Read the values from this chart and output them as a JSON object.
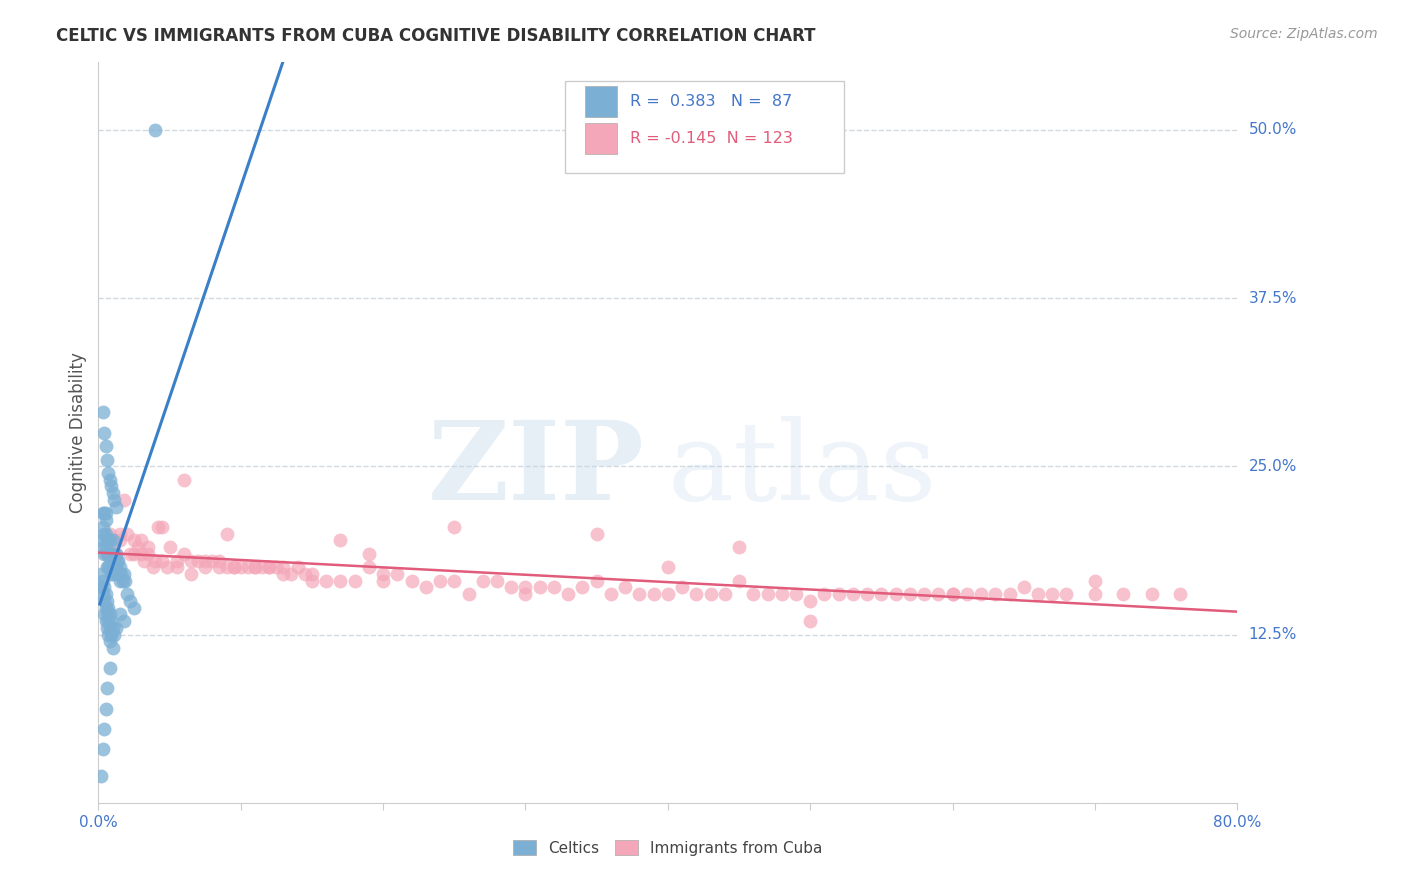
{
  "title": "CELTIC VS IMMIGRANTS FROM CUBA COGNITIVE DISABILITY CORRELATION CHART",
  "source": "Source: ZipAtlas.com",
  "ylabel": "Cognitive Disability",
  "xlim": [
    0.0,
    0.8
  ],
  "ylim": [
    0.0,
    0.55
  ],
  "celtics_R": 0.383,
  "celtics_N": 87,
  "cuba_R": -0.145,
  "cuba_N": 123,
  "celtics_color": "#7bafd4",
  "cuba_color": "#f4a7b9",
  "celtics_line_color": "#3a80c8",
  "cuba_line_color": "#e05c7a",
  "dashed_line_color": "#aec8e0",
  "grid_color": "#d0d8e0",
  "title_color": "#333333",
  "right_tick_color": "#4477cc",
  "source_color": "#999999",
  "celtics_x": [
    0.002,
    0.003,
    0.003,
    0.003,
    0.004,
    0.004,
    0.004,
    0.005,
    0.005,
    0.005,
    0.005,
    0.006,
    0.006,
    0.006,
    0.007,
    0.007,
    0.007,
    0.008,
    0.008,
    0.008,
    0.009,
    0.009,
    0.009,
    0.01,
    0.01,
    0.01,
    0.011,
    0.011,
    0.012,
    0.012,
    0.013,
    0.013,
    0.014,
    0.014,
    0.015,
    0.015,
    0.016,
    0.017,
    0.018,
    0.019,
    0.003,
    0.004,
    0.005,
    0.006,
    0.007,
    0.008,
    0.009,
    0.01,
    0.011,
    0.012,
    0.002,
    0.003,
    0.004,
    0.005,
    0.006,
    0.007,
    0.008,
    0.009,
    0.01,
    0.011,
    0.002,
    0.003,
    0.004,
    0.005,
    0.006,
    0.007,
    0.008,
    0.009,
    0.004,
    0.005,
    0.006,
    0.007,
    0.008,
    0.02,
    0.022,
    0.025,
    0.015,
    0.018,
    0.012,
    0.01,
    0.008,
    0.006,
    0.005,
    0.004,
    0.003,
    0.002,
    0.04
  ],
  "celtics_y": [
    0.195,
    0.215,
    0.205,
    0.19,
    0.215,
    0.2,
    0.185,
    0.21,
    0.2,
    0.215,
    0.19,
    0.195,
    0.185,
    0.175,
    0.195,
    0.185,
    0.175,
    0.185,
    0.175,
    0.195,
    0.18,
    0.17,
    0.185,
    0.18,
    0.17,
    0.195,
    0.175,
    0.185,
    0.175,
    0.185,
    0.18,
    0.17,
    0.18,
    0.17,
    0.175,
    0.165,
    0.17,
    0.165,
    0.17,
    0.165,
    0.29,
    0.275,
    0.265,
    0.255,
    0.245,
    0.24,
    0.235,
    0.23,
    0.225,
    0.22,
    0.17,
    0.165,
    0.16,
    0.155,
    0.15,
    0.145,
    0.14,
    0.135,
    0.13,
    0.125,
    0.16,
    0.155,
    0.15,
    0.145,
    0.14,
    0.135,
    0.13,
    0.125,
    0.14,
    0.135,
    0.13,
    0.125,
    0.12,
    0.155,
    0.15,
    0.145,
    0.14,
    0.135,
    0.13,
    0.115,
    0.1,
    0.085,
    0.07,
    0.055,
    0.04,
    0.02,
    0.5
  ],
  "cuba_x": [
    0.005,
    0.008,
    0.01,
    0.012,
    0.015,
    0.018,
    0.02,
    0.022,
    0.025,
    0.028,
    0.03,
    0.032,
    0.035,
    0.038,
    0.04,
    0.042,
    0.045,
    0.048,
    0.05,
    0.055,
    0.06,
    0.065,
    0.07,
    0.075,
    0.08,
    0.085,
    0.09,
    0.095,
    0.1,
    0.105,
    0.11,
    0.115,
    0.12,
    0.125,
    0.13,
    0.135,
    0.14,
    0.145,
    0.15,
    0.16,
    0.17,
    0.18,
    0.19,
    0.2,
    0.21,
    0.22,
    0.23,
    0.24,
    0.25,
    0.26,
    0.27,
    0.28,
    0.29,
    0.3,
    0.31,
    0.32,
    0.33,
    0.34,
    0.35,
    0.36,
    0.37,
    0.38,
    0.39,
    0.4,
    0.41,
    0.42,
    0.43,
    0.44,
    0.45,
    0.46,
    0.47,
    0.48,
    0.49,
    0.5,
    0.51,
    0.52,
    0.53,
    0.54,
    0.55,
    0.56,
    0.57,
    0.58,
    0.59,
    0.6,
    0.61,
    0.62,
    0.63,
    0.64,
    0.65,
    0.66,
    0.67,
    0.68,
    0.7,
    0.72,
    0.74,
    0.76,
    0.015,
    0.025,
    0.035,
    0.045,
    0.055,
    0.065,
    0.075,
    0.085,
    0.095,
    0.11,
    0.13,
    0.15,
    0.17,
    0.19,
    0.25,
    0.35,
    0.45,
    0.03,
    0.06,
    0.09,
    0.12,
    0.2,
    0.3,
    0.4,
    0.5,
    0.6,
    0.7
  ],
  "cuba_y": [
    0.185,
    0.2,
    0.19,
    0.185,
    0.195,
    0.225,
    0.2,
    0.185,
    0.185,
    0.19,
    0.195,
    0.18,
    0.185,
    0.175,
    0.18,
    0.205,
    0.18,
    0.175,
    0.19,
    0.18,
    0.185,
    0.18,
    0.18,
    0.18,
    0.18,
    0.18,
    0.175,
    0.175,
    0.175,
    0.175,
    0.175,
    0.175,
    0.175,
    0.175,
    0.175,
    0.17,
    0.175,
    0.17,
    0.165,
    0.165,
    0.165,
    0.165,
    0.175,
    0.165,
    0.17,
    0.165,
    0.16,
    0.165,
    0.165,
    0.155,
    0.165,
    0.165,
    0.16,
    0.16,
    0.16,
    0.16,
    0.155,
    0.16,
    0.165,
    0.155,
    0.16,
    0.155,
    0.155,
    0.155,
    0.16,
    0.155,
    0.155,
    0.155,
    0.165,
    0.155,
    0.155,
    0.155,
    0.155,
    0.15,
    0.155,
    0.155,
    0.155,
    0.155,
    0.155,
    0.155,
    0.155,
    0.155,
    0.155,
    0.155,
    0.155,
    0.155,
    0.155,
    0.155,
    0.16,
    0.155,
    0.155,
    0.155,
    0.155,
    0.155,
    0.155,
    0.155,
    0.2,
    0.195,
    0.19,
    0.205,
    0.175,
    0.17,
    0.175,
    0.175,
    0.175,
    0.175,
    0.17,
    0.17,
    0.195,
    0.185,
    0.205,
    0.2,
    0.19,
    0.185,
    0.24,
    0.2,
    0.175,
    0.17,
    0.155,
    0.175,
    0.135,
    0.155,
    0.165
  ]
}
